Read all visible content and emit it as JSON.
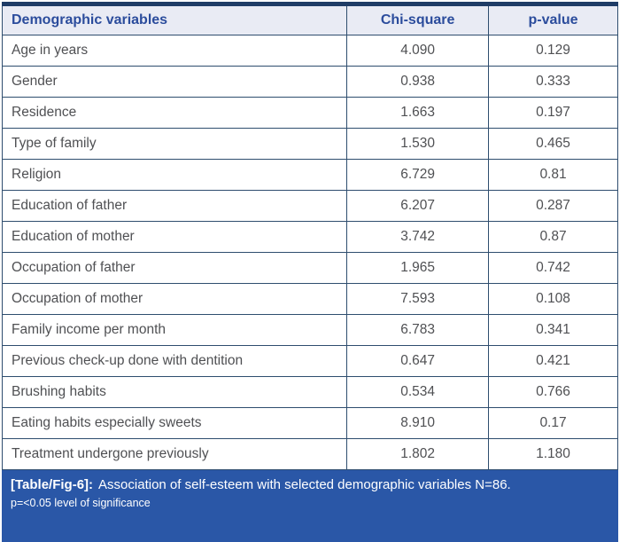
{
  "table": {
    "columns": {
      "variable": "Demographic variables",
      "chi_square": "Chi-square",
      "p_value": "p-value"
    },
    "rows": [
      {
        "variable": "Age in years",
        "chi_square": "4.090",
        "p_value": "0.129"
      },
      {
        "variable": "Gender",
        "chi_square": "0.938",
        "p_value": "0.333"
      },
      {
        "variable": "Residence",
        "chi_square": "1.663",
        "p_value": "0.197"
      },
      {
        "variable": "Type of family",
        "chi_square": "1.530",
        "p_value": "0.465"
      },
      {
        "variable": "Religion",
        "chi_square": "6.729",
        "p_value": "0.81"
      },
      {
        "variable": "Education of father",
        "chi_square": "6.207",
        "p_value": "0.287"
      },
      {
        "variable": "Education of mother",
        "chi_square": "3.742",
        "p_value": "0.87"
      },
      {
        "variable": "Occupation of father",
        "chi_square": "1.965",
        "p_value": "0.742"
      },
      {
        "variable": "Occupation of mother",
        "chi_square": "7.593",
        "p_value": "0.108"
      },
      {
        "variable": "Family income per month",
        "chi_square": "6.783",
        "p_value": "0.341"
      },
      {
        "variable": "Previous check-up done with dentition",
        "chi_square": "0.647",
        "p_value": "0.421"
      },
      {
        "variable": "Brushing habits",
        "chi_square": "0.534",
        "p_value": "0.766"
      },
      {
        "variable": "Eating habits especially sweets",
        "chi_square": "8.910",
        "p_value": "0.17"
      },
      {
        "variable": "Treatment undergone previously",
        "chi_square": "1.802",
        "p_value": "1.180"
      }
    ]
  },
  "caption": {
    "label": "[Table/Fig-6]:",
    "text": "Association of self-esteem with selected demographic variables N=86.",
    "note": "p=<0.05 level of significance"
  },
  "colors": {
    "top_rule": "#1f3c66",
    "grid_border": "#2e4d6e",
    "header_background": "#e9ebf4",
    "header_text": "#2b4c9c",
    "body_text": "#4f5053",
    "caption_background": "#2a57a7",
    "caption_text": "#ffffff"
  }
}
